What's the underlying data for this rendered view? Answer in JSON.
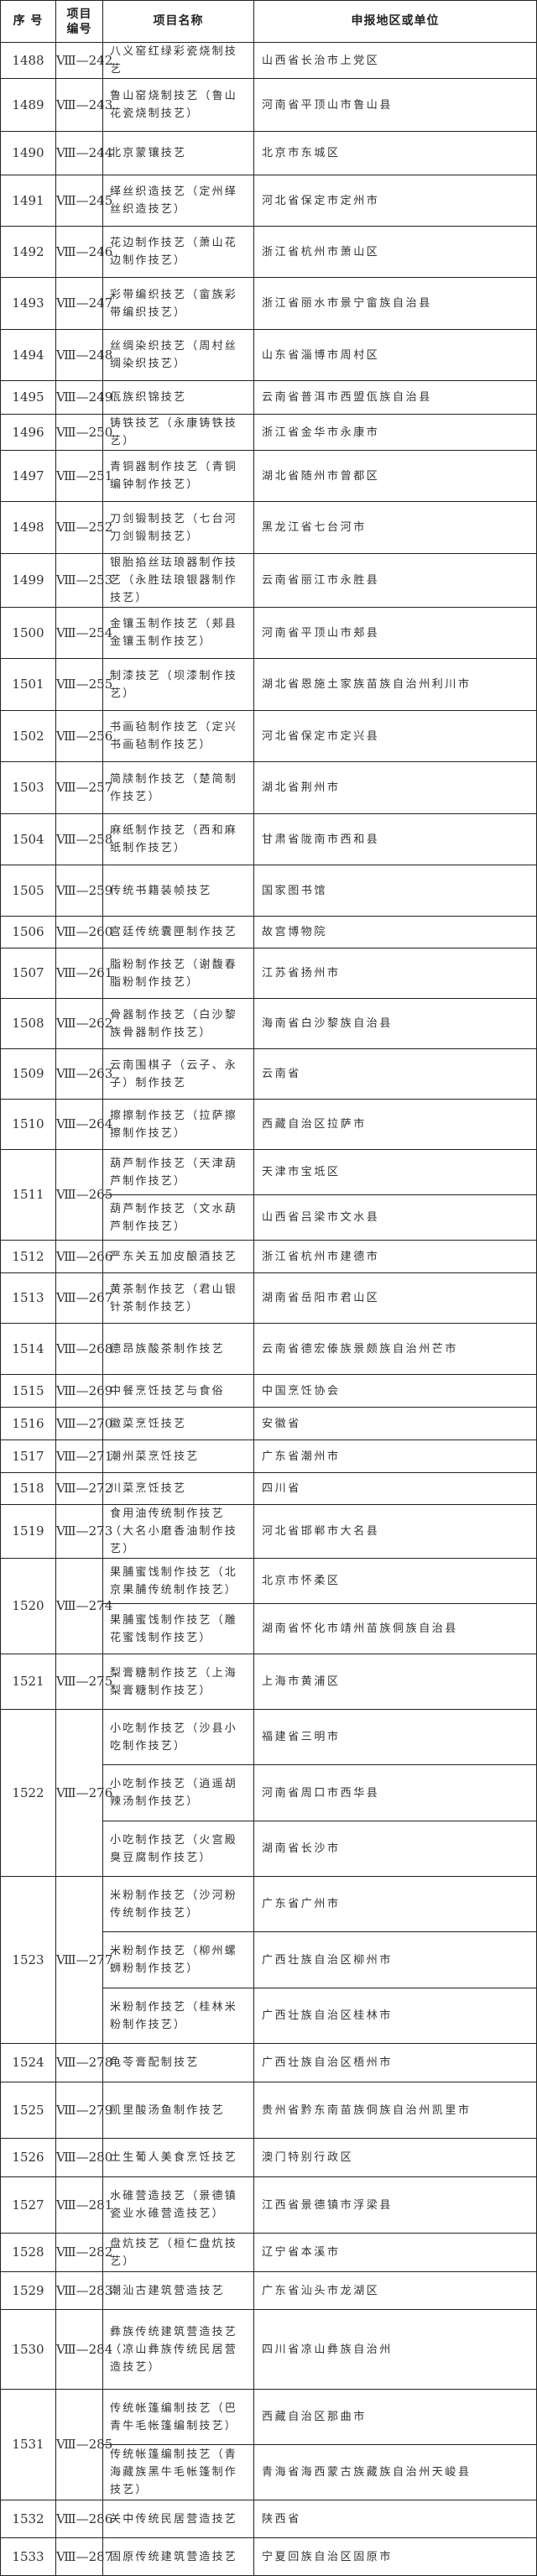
{
  "header": {
    "no": "序 号",
    "code_line1": "项目",
    "code_line2": "编号",
    "name": "项目名称",
    "region": "申报地区或单位"
  },
  "rows": [
    {
      "no": "1488",
      "code": "Ⅷ—242",
      "items": [
        {
          "name": "八义窑红绿彩瓷烧制技艺",
          "region": "山西省长治市上党区"
        }
      ]
    },
    {
      "no": "1489",
      "code": "Ⅷ—243",
      "items": [
        {
          "name": "鲁山窑烧制技艺（鲁山花瓷烧制技艺）",
          "region": "河南省平顶山市鲁山县"
        }
      ]
    },
    {
      "no": "1490",
      "code": "Ⅷ—244",
      "items": [
        {
          "name": "北京蒙镶技艺",
          "region": "北京市东城区"
        }
      ]
    },
    {
      "no": "1491",
      "code": "Ⅷ—245",
      "items": [
        {
          "name": "缂丝织造技艺（定州缂丝织造技艺）",
          "region": "河北省保定市定州市"
        }
      ]
    },
    {
      "no": "1492",
      "code": "Ⅷ—246",
      "items": [
        {
          "name": "花边制作技艺（萧山花边制作技艺）",
          "region": "浙江省杭州市萧山区"
        }
      ]
    },
    {
      "no": "1493",
      "code": "Ⅷ—247",
      "items": [
        {
          "name": "彩带编织技艺（畲族彩带编织技艺）",
          "region": "浙江省丽水市景宁畲族自治县"
        }
      ]
    },
    {
      "no": "1494",
      "code": "Ⅷ—248",
      "items": [
        {
          "name": "丝绸染织技艺（周村丝绸染织技艺）",
          "region": "山东省淄博市周村区"
        }
      ]
    },
    {
      "no": "1495",
      "code": "Ⅷ—249",
      "items": [
        {
          "name": "佤族织锦技艺",
          "region": "云南省普洱市西盟佤族自治县"
        }
      ]
    },
    {
      "no": "1496",
      "code": "Ⅷ—250",
      "items": [
        {
          "name": "铸铁技艺（永康铸铁技艺）",
          "region": "浙江省金华市永康市"
        }
      ]
    },
    {
      "no": "1497",
      "code": "Ⅷ—251",
      "items": [
        {
          "name": "青铜器制作技艺（青铜编钟制作技艺）",
          "region": "湖北省随州市曾都区"
        }
      ]
    },
    {
      "no": "1498",
      "code": "Ⅷ—252",
      "items": [
        {
          "name": "刀剑锻制技艺（七台河刀剑锻制技艺）",
          "region": "黑龙江省七台河市"
        }
      ]
    },
    {
      "no": "1499",
      "code": "Ⅷ—253",
      "items": [
        {
          "name": "银胎掐丝珐琅器制作技艺（永胜珐琅银器制作技艺）",
          "region": "云南省丽江市永胜县"
        }
      ]
    },
    {
      "no": "1500",
      "code": "Ⅷ—254",
      "items": [
        {
          "name": "金镶玉制作技艺（郏县金镶玉制作技艺）",
          "region": "河南省平顶山市郏县"
        }
      ]
    },
    {
      "no": "1501",
      "code": "Ⅷ—255",
      "items": [
        {
          "name": "制漆技艺（坝漆制作技艺）",
          "region": "湖北省恩施土家族苗族自治州利川市"
        }
      ]
    },
    {
      "no": "1502",
      "code": "Ⅷ—256",
      "items": [
        {
          "name": "书画毡制作技艺（定兴书画毡制作技艺）",
          "region": "河北省保定市定兴县"
        }
      ]
    },
    {
      "no": "1503",
      "code": "Ⅷ—257",
      "items": [
        {
          "name": "简牍制作技艺（楚简制作技艺）",
          "region": "湖北省荆州市"
        }
      ]
    },
    {
      "no": "1504",
      "code": "Ⅷ—258",
      "items": [
        {
          "name": "麻纸制作技艺（西和麻纸制作技艺）",
          "region": "甘肃省陇南市西和县"
        }
      ]
    },
    {
      "no": "1505",
      "code": "Ⅷ—259",
      "items": [
        {
          "name": "传统书籍装帧技艺",
          "region": "国家图书馆"
        }
      ]
    },
    {
      "no": "1506",
      "code": "Ⅷ—260",
      "items": [
        {
          "name": "宫廷传统囊匣制作技艺",
          "region": "故宫博物院"
        }
      ]
    },
    {
      "no": "1507",
      "code": "Ⅷ—261",
      "items": [
        {
          "name": "脂粉制作技艺（谢馥春脂粉制作技艺）",
          "region": "江苏省扬州市"
        }
      ]
    },
    {
      "no": "1508",
      "code": "Ⅷ—262",
      "items": [
        {
          "name": "骨器制作技艺（白沙黎族骨器制作技艺）",
          "region": "海南省白沙黎族自治县"
        }
      ]
    },
    {
      "no": "1509",
      "code": "Ⅷ—263",
      "items": [
        {
          "name": "云南围棋子（云子、永子）制作技艺",
          "region": "云南省"
        }
      ]
    },
    {
      "no": "1510",
      "code": "Ⅷ—264",
      "items": [
        {
          "name": "擦擦制作技艺（拉萨擦擦制作技艺）",
          "region": "西藏自治区拉萨市"
        }
      ]
    },
    {
      "no": "1511",
      "code": "Ⅷ—265",
      "items": [
        {
          "name": "葫芦制作技艺（天津葫芦制作技艺）",
          "region": "天津市宝坻区"
        },
        {
          "name": "葫芦制作技艺（文水葫芦制作技艺）",
          "region": "山西省吕梁市文水县"
        }
      ]
    },
    {
      "no": "1512",
      "code": "Ⅷ—266",
      "items": [
        {
          "name": "严东关五加皮酿酒技艺",
          "region": "浙江省杭州市建德市"
        }
      ]
    },
    {
      "no": "1513",
      "code": "Ⅷ—267",
      "items": [
        {
          "name": "黄茶制作技艺（君山银针茶制作技艺）",
          "region": "湖南省岳阳市君山区"
        }
      ]
    },
    {
      "no": "1514",
      "code": "Ⅷ—268",
      "items": [
        {
          "name": "德昂族酸茶制作技艺",
          "region": "云南省德宏傣族景颇族自治州芒市"
        }
      ]
    },
    {
      "no": "1515",
      "code": "Ⅷ—269",
      "items": [
        {
          "name": "中餐烹饪技艺与食俗",
          "region": "中国烹饪协会"
        }
      ]
    },
    {
      "no": "1516",
      "code": "Ⅷ—270",
      "items": [
        {
          "name": "徽菜烹饪技艺",
          "region": "安徽省"
        }
      ]
    },
    {
      "no": "1517",
      "code": "Ⅷ—271",
      "items": [
        {
          "name": "潮州菜烹饪技艺",
          "region": "广东省潮州市"
        }
      ]
    },
    {
      "no": "1518",
      "code": "Ⅷ—272",
      "items": [
        {
          "name": "川菜烹饪技艺",
          "region": "四川省"
        }
      ]
    },
    {
      "no": "1519",
      "code": "Ⅷ—273",
      "items": [
        {
          "name": "食用油传统制作技艺（大名小磨香油制作技艺）",
          "region": "河北省邯郸市大名县"
        }
      ]
    },
    {
      "no": "1520",
      "code": "Ⅷ—274",
      "items": [
        {
          "name": "果脯蜜饯制作技艺（北京果脯传统制作技艺）",
          "region": "北京市怀柔区"
        },
        {
          "name": "果脯蜜饯制作技艺（雕花蜜饯制作技艺）",
          "region": "湖南省怀化市靖州苗族侗族自治县"
        }
      ]
    },
    {
      "no": "1521",
      "code": "Ⅷ—275",
      "items": [
        {
          "name": "梨膏糖制作技艺（上海梨膏糖制作技艺）",
          "region": "上海市黄浦区"
        }
      ]
    },
    {
      "no": "1522",
      "code": "Ⅷ—276",
      "items": [
        {
          "name": "小吃制作技艺（沙县小吃制作技艺）",
          "region": "福建省三明市"
        },
        {
          "name": "小吃制作技艺（逍遥胡辣汤制作技艺）",
          "region": "河南省周口市西华县"
        },
        {
          "name": "小吃制作技艺（火宫殿臭豆腐制作技艺）",
          "region": "湖南省长沙市"
        }
      ]
    },
    {
      "no": "1523",
      "code": "Ⅷ—277",
      "items": [
        {
          "name": "米粉制作技艺（沙河粉传统制作技艺）",
          "region": "广东省广州市"
        },
        {
          "name": "米粉制作技艺（柳州螺蛳粉制作技艺）",
          "region": "广西壮族自治区柳州市"
        },
        {
          "name": "米粉制作技艺（桂林米粉制作技艺）",
          "region": "广西壮族自治区桂林市"
        }
      ]
    },
    {
      "no": "1524",
      "code": "Ⅷ—278",
      "items": [
        {
          "name": "龟苓膏配制技艺",
          "region": "广西壮族自治区梧州市"
        }
      ]
    },
    {
      "no": "1525",
      "code": "Ⅷ—279",
      "items": [
        {
          "name": "凯里酸汤鱼制作技艺",
          "region": "贵州省黔东南苗族侗族自治州凯里市"
        }
      ]
    },
    {
      "no": "1526",
      "code": "Ⅷ—280",
      "items": [
        {
          "name": "土生葡人美食烹饪技艺",
          "region": "澳门特别行政区"
        }
      ]
    },
    {
      "no": "1527",
      "code": "Ⅷ—281",
      "items": [
        {
          "name": "水碓营造技艺（景德镇瓷业水碓营造技艺）",
          "region": "江西省景德镇市浮梁县"
        }
      ]
    },
    {
      "no": "1528",
      "code": "Ⅷ—282",
      "items": [
        {
          "name": "盘炕技艺（桓仁盘炕技艺）",
          "region": "辽宁省本溪市"
        }
      ]
    },
    {
      "no": "1529",
      "code": "Ⅷ—283",
      "items": [
        {
          "name": "潮汕古建筑营造技艺",
          "region": "广东省汕头市龙湖区"
        }
      ]
    },
    {
      "no": "1530",
      "code": "Ⅷ—284",
      "items": [
        {
          "name": "彝族传统建筑营造技艺（凉山彝族传统民居营造技艺）",
          "region": "四川省凉山彝族自治州"
        }
      ]
    },
    {
      "no": "1531",
      "code": "Ⅷ—285",
      "items": [
        {
          "name": "传统帐篷编制技艺（巴青牛毛帐篷编制技艺）",
          "region": "西藏自治区那曲市"
        },
        {
          "name": "传统帐篷编制技艺（青海藏族黑牛毛帐篷制作技艺）",
          "region": "青海省海西蒙古族藏族自治州天峻县"
        }
      ]
    },
    {
      "no": "1532",
      "code": "Ⅷ—286",
      "items": [
        {
          "name": "关中传统民居营造技艺",
          "region": "陕西省"
        }
      ]
    },
    {
      "no": "1533",
      "code": "Ⅷ—287",
      "items": [
        {
          "name": "固原传统建筑营造技艺",
          "region": "宁夏回族自治区固原市"
        }
      ]
    }
  ]
}
